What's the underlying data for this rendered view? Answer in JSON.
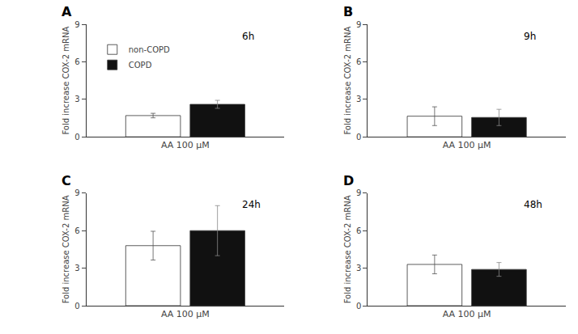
{
  "chart_data": [
    {
      "type": "bar",
      "title": "A",
      "annotations": [
        "6h"
      ],
      "y_label": "Fold increase COX-2 mRNA",
      "categories": [
        "AA 100 μM"
      ],
      "series": [
        {
          "name": "non-COPD",
          "color": "#ffffff",
          "values": [
            1.7
          ],
          "errors": [
            0.18
          ]
        },
        {
          "name": "COPD",
          "color": "#111111",
          "values": [
            2.6
          ],
          "errors": [
            0.32
          ]
        }
      ],
      "ylim": [
        0,
        9
      ],
      "yticks": [
        0,
        3,
        6,
        9
      ],
      "grid": false,
      "legend": "upper left"
    },
    {
      "type": "bar",
      "title": "B",
      "annotations": [
        "9h"
      ],
      "y_label": "Fold increase COX-2 mRNA",
      "categories": [
        "AA 100 μM"
      ],
      "series": [
        {
          "name": "non-COPD",
          "color": "#ffffff",
          "values": [
            1.65
          ],
          "errors": [
            0.75
          ]
        },
        {
          "name": "COPD",
          "color": "#111111",
          "values": [
            1.55
          ],
          "errors": [
            0.65
          ]
        }
      ],
      "ylim": [
        0,
        9
      ],
      "yticks": [
        0,
        3,
        6,
        9
      ],
      "grid": false
    },
    {
      "type": "bar",
      "title": "C",
      "annotations": [
        "24h"
      ],
      "y_label": "Fold increase COX-2 mRNA",
      "categories": [
        "AA 100 μM"
      ],
      "series": [
        {
          "name": "non-COPD",
          "color": "#ffffff",
          "values": [
            4.8
          ],
          "errors": [
            1.15
          ]
        },
        {
          "name": "COPD",
          "color": "#111111",
          "values": [
            6.0
          ],
          "errors": [
            2.0
          ]
        }
      ],
      "ylim": [
        0,
        9
      ],
      "yticks": [
        0,
        3,
        6,
        9
      ],
      "grid": false
    },
    {
      "type": "bar",
      "title": "D",
      "annotations": [
        "48h"
      ],
      "y_label": "Fold increase COX-2 mRNA",
      "categories": [
        "AA 100 μM"
      ],
      "series": [
        {
          "name": "non-COPD",
          "color": "#ffffff",
          "values": [
            3.3
          ],
          "errors": [
            0.75
          ]
        },
        {
          "name": "COPD",
          "color": "#111111",
          "values": [
            2.9
          ],
          "errors": [
            0.55
          ]
        }
      ],
      "ylim": [
        0,
        9
      ],
      "yticks": [
        0,
        3,
        6,
        9
      ],
      "grid": false
    }
  ]
}
